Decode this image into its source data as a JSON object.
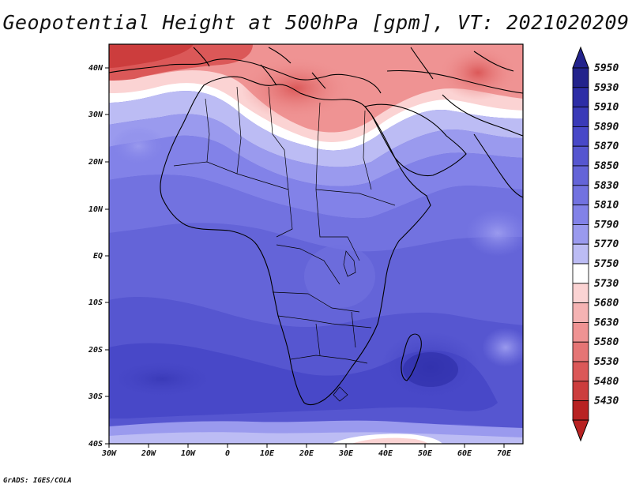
{
  "title": "Geopotential Height at 500hPa [gpm], VT: 2021020209",
  "footer": "GrADS: IGES/COLA",
  "map": {
    "lon_labels": [
      "30W",
      "20W",
      "10W",
      "0",
      "10E",
      "20E",
      "30E",
      "40E",
      "50E",
      "60E",
      "70E"
    ],
    "lat_labels": [
      "40N",
      "30N",
      "20N",
      "10N",
      "EQ",
      "10S",
      "20S",
      "30S",
      "40S"
    ],
    "lon_range": [
      -30,
      75
    ],
    "lat_range": [
      -40,
      45
    ]
  },
  "colorbar": {
    "levels": [
      "5950",
      "5930",
      "5910",
      "5890",
      "5870",
      "5850",
      "5830",
      "5810",
      "5790",
      "5770",
      "5750",
      "5730",
      "5680",
      "5630",
      "5580",
      "5530",
      "5480",
      "5430"
    ],
    "colors": [
      "#23238c",
      "#2d2da6",
      "#3a3ab8",
      "#4848c8",
      "#5656d0",
      "#6464d8",
      "#7272e0",
      "#8282e8",
      "#9a9aee",
      "#bcbcf4",
      "#ffffff",
      "#fbd3d3",
      "#f5b3b3",
      "#ef9393",
      "#e57575",
      "#db5858",
      "#cc3d3d",
      "#b82222"
    ]
  }
}
